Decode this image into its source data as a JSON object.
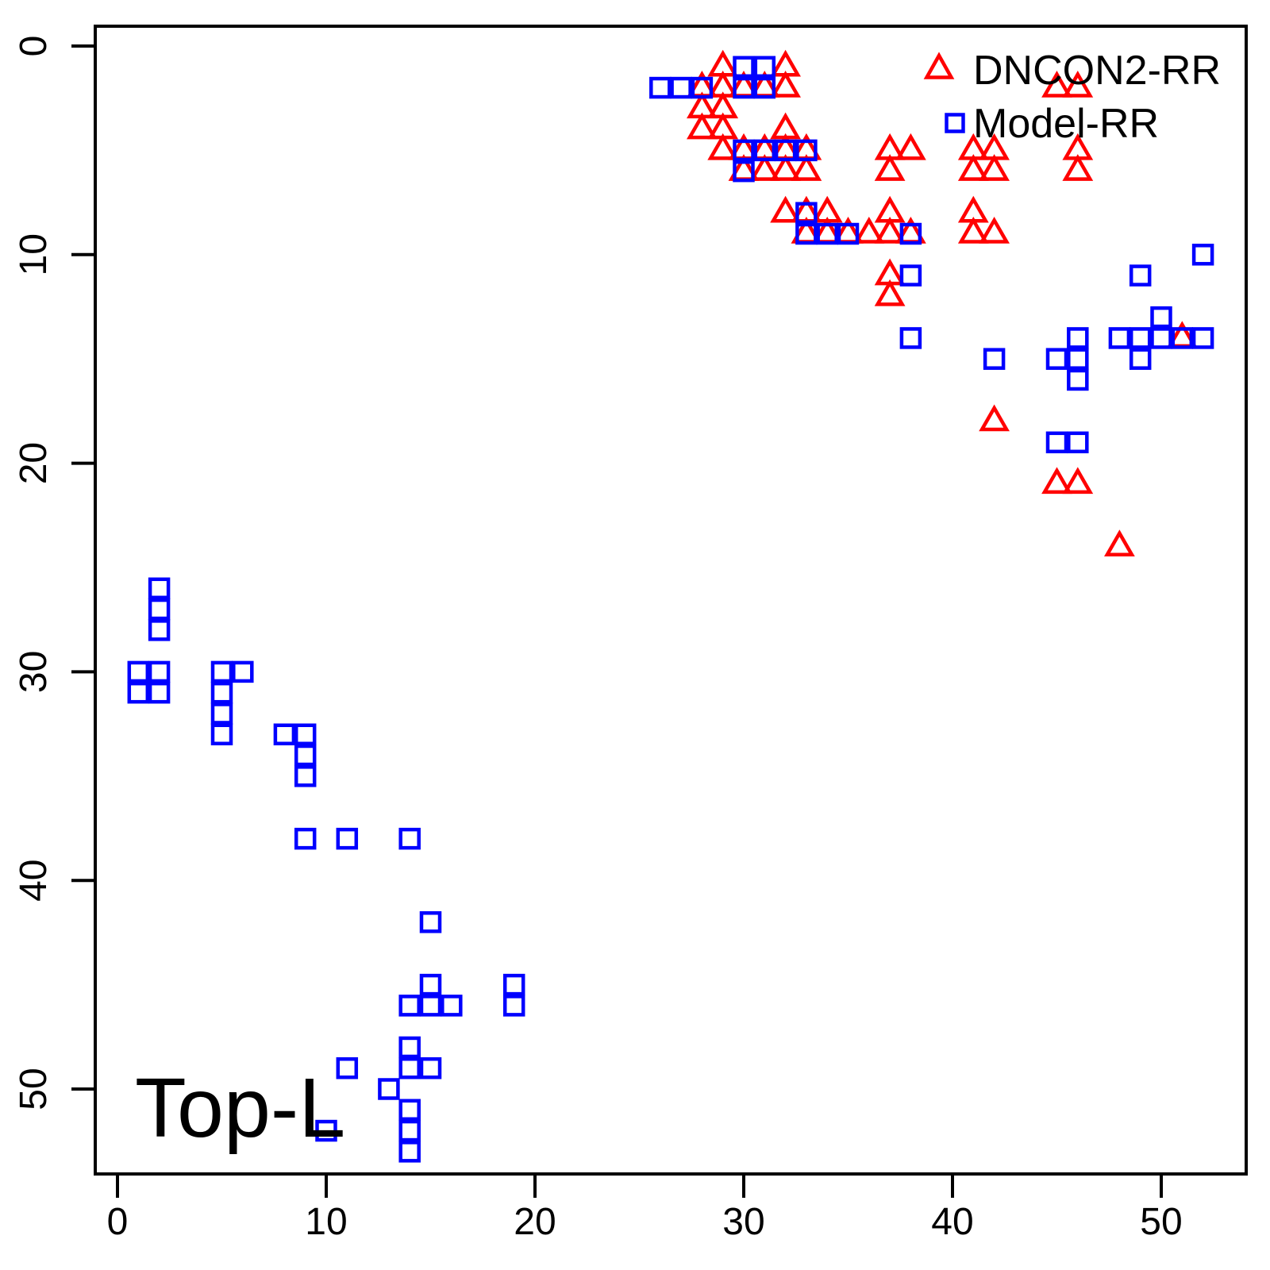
{
  "figure": {
    "annotation": "Top-L",
    "colors": {
      "dncon2_red": "#FF0000",
      "model_blue": "#0000FF",
      "axis_black": "#000000",
      "background": "#FFFFFF"
    }
  },
  "legend": {
    "entries": [
      {
        "label": "DNCON2-RR",
        "marker": "triangle-open",
        "color": "#FF0000"
      },
      {
        "label": "Model-RR",
        "marker": "square-open",
        "color": "#0000FF"
      }
    ]
  },
  "chart_data": {
    "type": "scatter",
    "title": "",
    "xlabel": "",
    "ylabel": "",
    "annotation": "Top-L",
    "x_ticks": [
      0,
      10,
      20,
      30,
      40,
      50
    ],
    "y_ticks": [
      0,
      10,
      20,
      30,
      40,
      50
    ],
    "xlim": [
      -1,
      54
    ],
    "ylim": [
      54,
      -1
    ],
    "y_axis_reversed": true,
    "grid": false,
    "legend_position": "top-right",
    "series": [
      {
        "name": "DNCON2-RR",
        "marker": "triangle-open",
        "color": "#FF0000",
        "points": [
          [
            29,
            1
          ],
          [
            32,
            1
          ],
          [
            28,
            2
          ],
          [
            29,
            2
          ],
          [
            30,
            2
          ],
          [
            31,
            2
          ],
          [
            32,
            2
          ],
          [
            45,
            2
          ],
          [
            46,
            2
          ],
          [
            28,
            3
          ],
          [
            29,
            3
          ],
          [
            28,
            4
          ],
          [
            29,
            4
          ],
          [
            32,
            4
          ],
          [
            29,
            5
          ],
          [
            30,
            5
          ],
          [
            31,
            5
          ],
          [
            32,
            5
          ],
          [
            33,
            5
          ],
          [
            37,
            5
          ],
          [
            38,
            5
          ],
          [
            41,
            5
          ],
          [
            42,
            5
          ],
          [
            46,
            5
          ],
          [
            30,
            6
          ],
          [
            31,
            6
          ],
          [
            32,
            6
          ],
          [
            33,
            6
          ],
          [
            37,
            6
          ],
          [
            41,
            6
          ],
          [
            42,
            6
          ],
          [
            46,
            6
          ],
          [
            32,
            8
          ],
          [
            33,
            8
          ],
          [
            34,
            8
          ],
          [
            37,
            8
          ],
          [
            41,
            8
          ],
          [
            33,
            9
          ],
          [
            34,
            9
          ],
          [
            35,
            9
          ],
          [
            36,
            9
          ],
          [
            37,
            9
          ],
          [
            38,
            9
          ],
          [
            41,
            9
          ],
          [
            42,
            9
          ],
          [
            37,
            11
          ],
          [
            37,
            12
          ],
          [
            51,
            14
          ],
          [
            42,
            18
          ],
          [
            45,
            21
          ],
          [
            46,
            21
          ],
          [
            48,
            24
          ]
        ]
      },
      {
        "name": "Model-RR",
        "marker": "square-open",
        "color": "#0000FF",
        "points": [
          [
            30,
            1
          ],
          [
            31,
            1
          ],
          [
            26,
            2
          ],
          [
            27,
            2
          ],
          [
            28,
            2
          ],
          [
            30,
            2
          ],
          [
            31,
            2
          ],
          [
            30,
            5
          ],
          [
            31,
            5
          ],
          [
            32,
            5
          ],
          [
            33,
            5
          ],
          [
            30,
            6
          ],
          [
            33,
            8
          ],
          [
            33,
            9
          ],
          [
            34,
            9
          ],
          [
            35,
            9
          ],
          [
            38,
            9
          ],
          [
            52,
            10
          ],
          [
            38,
            11
          ],
          [
            49,
            11
          ],
          [
            50,
            13
          ],
          [
            38,
            14
          ],
          [
            46,
            14
          ],
          [
            48,
            14
          ],
          [
            49,
            14
          ],
          [
            50,
            14
          ],
          [
            51,
            14
          ],
          [
            52,
            14
          ],
          [
            42,
            15
          ],
          [
            45,
            15
          ],
          [
            46,
            15
          ],
          [
            49,
            15
          ],
          [
            46,
            16
          ],
          [
            45,
            19
          ],
          [
            46,
            19
          ],
          [
            2,
            26
          ],
          [
            2,
            27
          ],
          [
            2,
            28
          ],
          [
            1,
            30
          ],
          [
            2,
            30
          ],
          [
            5,
            30
          ],
          [
            6,
            30
          ],
          [
            1,
            31
          ],
          [
            2,
            31
          ],
          [
            5,
            31
          ],
          [
            5,
            32
          ],
          [
            5,
            33
          ],
          [
            8,
            33
          ],
          [
            9,
            33
          ],
          [
            9,
            34
          ],
          [
            9,
            35
          ],
          [
            9,
            38
          ],
          [
            11,
            38
          ],
          [
            14,
            38
          ],
          [
            15,
            42
          ],
          [
            15,
            45
          ],
          [
            19,
            45
          ],
          [
            14,
            46
          ],
          [
            15,
            46
          ],
          [
            16,
            46
          ],
          [
            19,
            46
          ],
          [
            14,
            48
          ],
          [
            11,
            49
          ],
          [
            14,
            49
          ],
          [
            15,
            49
          ],
          [
            13,
            50
          ],
          [
            14,
            51
          ],
          [
            10,
            52
          ],
          [
            14,
            52
          ],
          [
            14,
            53
          ]
        ]
      }
    ]
  }
}
